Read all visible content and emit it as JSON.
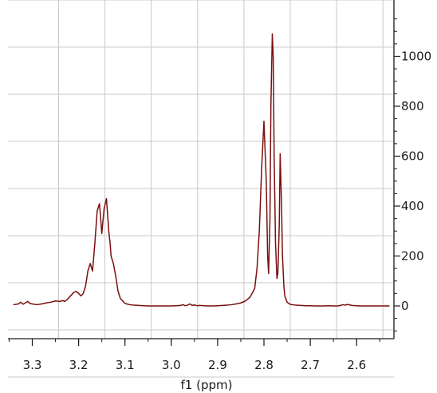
{
  "chart_data": {
    "type": "line",
    "title": "",
    "xlabel": "f1 (ppm)",
    "ylabel": "",
    "x_reversed": true,
    "xlim": [
      3.34,
      2.53
    ],
    "ylim": [
      -100,
      1150
    ],
    "x_ticks": [
      3.3,
      3.2,
      3.1,
      3.0,
      2.9,
      2.8,
      2.7,
      2.6
    ],
    "x_tick_labels": [
      "3.3",
      "3.2",
      "3.1",
      "3.0",
      "2.9",
      "2.8",
      "2.7",
      "2.6"
    ],
    "y_ticks": [
      0,
      200,
      400,
      600,
      800,
      1000
    ],
    "y_tick_labels": [
      "0",
      "200",
      "400",
      "600",
      "800",
      "1000"
    ],
    "grid": true,
    "line_color": "#7a0f0f",
    "series": [
      {
        "x": [
          3.34,
          3.33,
          3.325,
          3.32,
          3.315,
          3.31,
          3.305,
          3.3,
          3.29,
          3.28,
          3.27,
          3.26,
          3.25,
          3.24,
          3.235,
          3.23,
          3.225,
          3.22,
          3.215,
          3.21,
          3.205,
          3.2,
          3.195,
          3.19,
          3.185,
          3.18,
          3.175,
          3.17,
          3.165,
          3.16,
          3.155,
          3.152,
          3.15,
          3.148,
          3.145,
          3.14,
          3.138,
          3.135,
          3.132,
          3.13,
          3.125,
          3.12,
          3.115,
          3.11,
          3.1,
          3.09,
          3.08,
          3.07,
          3.06,
          3.05,
          3.04,
          3.03,
          3.02,
          3.01,
          3.0,
          2.99,
          2.98,
          2.975,
          2.97,
          2.965,
          2.96,
          2.955,
          2.95,
          2.945,
          2.94,
          2.93,
          2.92,
          2.91,
          2.9,
          2.89,
          2.88,
          2.87,
          2.86,
          2.85,
          2.84,
          2.83,
          2.82,
          2.815,
          2.81,
          2.805,
          2.8,
          2.795,
          2.792,
          2.79,
          2.787,
          2.785,
          2.782,
          2.78,
          2.778,
          2.775,
          2.772,
          2.77,
          2.767,
          2.765,
          2.762,
          2.76,
          2.757,
          2.755,
          2.75,
          2.745,
          2.74,
          2.73,
          2.72,
          2.71,
          2.7,
          2.69,
          2.68,
          2.67,
          2.66,
          2.65,
          2.64,
          2.635,
          2.63,
          2.625,
          2.62,
          2.61,
          2.6,
          2.59,
          2.58,
          2.57,
          2.56,
          2.55,
          2.54,
          2.53
        ],
        "y": [
          5,
          8,
          15,
          7,
          12,
          18,
          10,
          8,
          5,
          8,
          12,
          15,
          20,
          18,
          22,
          18,
          25,
          35,
          45,
          55,
          58,
          50,
          40,
          50,
          80,
          140,
          170,
          140,
          250,
          380,
          410,
          340,
          290,
          330,
          390,
          430,
          380,
          300,
          250,
          200,
          170,
          120,
          60,
          30,
          10,
          5,
          3,
          2,
          1,
          0,
          0,
          0,
          0,
          0,
          0,
          1,
          2,
          5,
          1,
          3,
          8,
          2,
          4,
          1,
          2,
          1,
          0,
          0,
          1,
          2,
          3,
          5,
          8,
          12,
          20,
          35,
          70,
          150,
          300,
          550,
          740,
          500,
          200,
          130,
          350,
          800,
          1090,
          1000,
          600,
          250,
          110,
          130,
          320,
          610,
          400,
          200,
          80,
          40,
          15,
          8,
          5,
          3,
          2,
          1,
          1,
          0,
          0,
          0,
          1,
          0,
          0,
          2,
          5,
          3,
          6,
          2,
          1,
          0,
          0,
          0,
          0,
          0,
          0,
          0
        ]
      }
    ]
  }
}
